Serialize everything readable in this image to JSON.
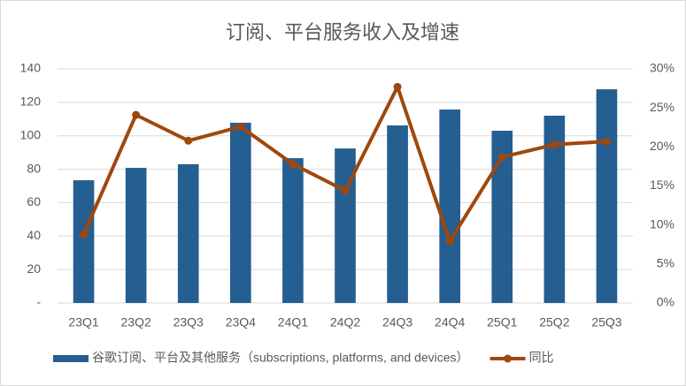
{
  "chart_data": {
    "type": "combo",
    "title": "订阅、平台服务收入及增速",
    "categories": [
      "23Q1",
      "23Q2",
      "23Q3",
      "23Q4",
      "24Q1",
      "24Q2",
      "24Q3",
      "24Q4",
      "25Q1",
      "25Q2",
      "25Q3"
    ],
    "series": [
      {
        "name": "谷歌订阅、平台及其他服务（subscriptions, platforms, and devices）",
        "type": "bar",
        "color": "#255e91",
        "values": [
          73.4,
          80.8,
          83,
          107.8,
          86.6,
          92.4,
          106.2,
          115.7,
          103,
          112,
          127.8
        ]
      },
      {
        "name": "同比",
        "type": "line",
        "axis": "y2",
        "color": "#9e480e",
        "values": [
          8.8,
          24.1,
          20.8,
          22.6,
          17.8,
          14.4,
          27.7,
          7.9,
          18.7,
          20.3,
          20.7
        ]
      }
    ],
    "ylim": [
      0,
      140
    ],
    "yticks": [
      {
        "value": 0,
        "label": "-"
      },
      20,
      40,
      60,
      80,
      100,
      120,
      140
    ],
    "y2lim": [
      0,
      30
    ],
    "y2ticks": [
      {
        "value": 0,
        "label": "0%"
      },
      {
        "value": 5,
        "label": "5%"
      },
      {
        "value": 10,
        "label": "10%"
      },
      {
        "value": 15,
        "label": "15%"
      },
      {
        "value": 20,
        "label": "20%"
      },
      {
        "value": 25,
        "label": "25%"
      },
      {
        "value": 30,
        "label": "30%"
      }
    ],
    "grid": true,
    "legend": "bottom"
  }
}
